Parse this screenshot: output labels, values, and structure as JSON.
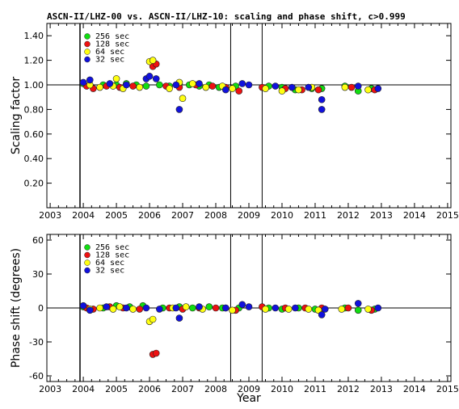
{
  "title": "ASCN-II/LHZ-00 vs. ASCN-II/LHZ-10: scaling and phase shift, c>0.999",
  "colors": {
    "256 sec": "#11dd11",
    "128 sec": "#ee1111",
    "64 sec": "#ffff11",
    "32 sec": "#1111dd"
  },
  "chart_data": [
    {
      "type": "scatter",
      "name": "scaling",
      "ylabel": "Scaling factor",
      "xlabel": "",
      "xlim": [
        2002.9,
        2015.1
      ],
      "ylim": [
        0.0,
        1.5
      ],
      "x_ticks": [
        "2003",
        "2004",
        "2005",
        "2006",
        "2007",
        "2008",
        "2009",
        "2010",
        "2011",
        "2012",
        "2013",
        "2014",
        "2015"
      ],
      "y_ticks": [
        "0.20",
        "0.40",
        "0.60",
        "0.80",
        "1.00",
        "1.20",
        "1.40"
      ],
      "reference_line": 1.0,
      "vlines": [
        2003.9,
        2008.45,
        2009.4
      ],
      "legend": [
        "256 sec",
        "128 sec",
        "64 sec",
        "32 sec"
      ],
      "series": [
        {
          "name": "256 sec",
          "points": [
            [
              2004.0,
              1.01
            ],
            [
              2004.6,
              1.0
            ],
            [
              2005.0,
              1.0
            ],
            [
              2005.3,
              1.01
            ],
            [
              2005.6,
              1.0
            ],
            [
              2005.9,
              0.99
            ],
            [
              2006.3,
              1.0
            ],
            [
              2006.6,
              0.99
            ],
            [
              2006.9,
              1.01
            ],
            [
              2007.2,
              1.0
            ],
            [
              2007.5,
              0.99
            ],
            [
              2007.8,
              1.0
            ],
            [
              2008.1,
              0.98
            ],
            [
              2008.6,
              0.99
            ],
            [
              2009.6,
              0.99
            ],
            [
              2010.0,
              0.98
            ],
            [
              2010.4,
              0.96
            ],
            [
              2010.9,
              0.97
            ],
            [
              2011.2,
              0.97
            ],
            [
              2011.9,
              0.99
            ],
            [
              2012.3,
              0.95
            ],
            [
              2012.7,
              0.97
            ]
          ]
        },
        {
          "name": "128 sec",
          "points": [
            [
              2004.1,
              0.99
            ],
            [
              2004.3,
              0.97
            ],
            [
              2004.7,
              0.99
            ],
            [
              2005.1,
              0.98
            ],
            [
              2005.5,
              0.99
            ],
            [
              2006.1,
              1.15
            ],
            [
              2006.2,
              1.17
            ],
            [
              2006.5,
              0.99
            ],
            [
              2006.9,
              0.98
            ],
            [
              2007.4,
              1.0
            ],
            [
              2007.9,
              0.99
            ],
            [
              2008.3,
              0.98
            ],
            [
              2008.7,
              0.95
            ],
            [
              2009.4,
              0.98
            ],
            [
              2010.1,
              0.97
            ],
            [
              2010.6,
              0.96
            ],
            [
              2011.1,
              0.96
            ],
            [
              2012.1,
              0.98
            ],
            [
              2012.8,
              0.96
            ]
          ]
        },
        {
          "name": "64 sec",
          "points": [
            [
              2004.2,
              1.0
            ],
            [
              2004.5,
              0.98
            ],
            [
              2004.9,
              0.99
            ],
            [
              2005.0,
              1.05
            ],
            [
              2005.2,
              0.97
            ],
            [
              2005.7,
              0.98
            ],
            [
              2006.0,
              1.19
            ],
            [
              2006.1,
              1.2
            ],
            [
              2006.6,
              0.97
            ],
            [
              2006.9,
              1.02
            ],
            [
              2007.0,
              0.89
            ],
            [
              2007.3,
              1.01
            ],
            [
              2007.7,
              0.98
            ],
            [
              2008.2,
              0.99
            ],
            [
              2008.5,
              0.97
            ],
            [
              2009.5,
              0.97
            ],
            [
              2010.0,
              0.95
            ],
            [
              2010.5,
              0.96
            ],
            [
              2010.9,
              0.98
            ],
            [
              2011.9,
              0.98
            ],
            [
              2012.6,
              0.96
            ]
          ]
        },
        {
          "name": "32 sec",
          "points": [
            [
              2004.0,
              1.02
            ],
            [
              2004.2,
              1.04
            ],
            [
              2004.8,
              1.01
            ],
            [
              2005.3,
              1.0
            ],
            [
              2005.9,
              1.05
            ],
            [
              2006.0,
              1.07
            ],
            [
              2006.2,
              1.05
            ],
            [
              2006.8,
              1.0
            ],
            [
              2006.9,
              0.8
            ],
            [
              2007.5,
              1.01
            ],
            [
              2008.3,
              0.96
            ],
            [
              2008.8,
              1.01
            ],
            [
              2009.0,
              1.0
            ],
            [
              2009.8,
              0.99
            ],
            [
              2010.3,
              0.98
            ],
            [
              2010.8,
              0.98
            ],
            [
              2011.2,
              0.88
            ],
            [
              2011.2,
              0.8
            ],
            [
              2012.3,
              0.99
            ],
            [
              2012.9,
              0.97
            ]
          ]
        }
      ]
    },
    {
      "type": "scatter",
      "name": "phase",
      "ylabel": "Phase shift (degrees)",
      "xlabel": "Year",
      "xlim": [
        2002.9,
        2015.1
      ],
      "ylim": [
        -65,
        65
      ],
      "x_ticks": [
        "2003",
        "2004",
        "2005",
        "2006",
        "2007",
        "2008",
        "2009",
        "2010",
        "2011",
        "2012",
        "2013",
        "2014",
        "2015"
      ],
      "y_ticks": [
        "-60",
        "-30",
        "0",
        "30",
        "60"
      ],
      "reference_line": 0,
      "vlines": [
        2003.9,
        2008.45,
        2009.4
      ],
      "legend": [
        "256 sec",
        "128 sec",
        "64 sec",
        "32 sec"
      ],
      "series": [
        {
          "name": "256 sec",
          "points": [
            [
              2004.0,
              1
            ],
            [
              2004.6,
              0
            ],
            [
              2005.0,
              2
            ],
            [
              2005.4,
              1
            ],
            [
              2005.8,
              2
            ],
            [
              2006.4,
              0
            ],
            [
              2006.9,
              1
            ],
            [
              2007.3,
              0
            ],
            [
              2007.8,
              1
            ],
            [
              2008.2,
              0
            ],
            [
              2008.7,
              0
            ],
            [
              2009.6,
              0
            ],
            [
              2010.0,
              -1
            ],
            [
              2010.5,
              0
            ],
            [
              2011.0,
              -1
            ],
            [
              2011.9,
              0
            ],
            [
              2012.3,
              -2
            ],
            [
              2012.8,
              -1
            ]
          ]
        },
        {
          "name": "128 sec",
          "points": [
            [
              2004.1,
              0
            ],
            [
              2004.3,
              -1
            ],
            [
              2004.8,
              1
            ],
            [
              2005.2,
              0
            ],
            [
              2005.7,
              -1
            ],
            [
              2006.1,
              -41
            ],
            [
              2006.2,
              -40
            ],
            [
              2006.6,
              0
            ],
            [
              2007.0,
              -1
            ],
            [
              2007.5,
              0
            ],
            [
              2008.0,
              0
            ],
            [
              2008.6,
              -2
            ],
            [
              2009.4,
              1
            ],
            [
              2010.1,
              0
            ],
            [
              2010.7,
              0
            ],
            [
              2011.2,
              0
            ],
            [
              2012.0,
              0
            ],
            [
              2012.7,
              -2
            ]
          ]
        },
        {
          "name": "64 sec",
          "points": [
            [
              2004.2,
              -1
            ],
            [
              2004.5,
              0
            ],
            [
              2004.9,
              -1
            ],
            [
              2005.1,
              1
            ],
            [
              2005.5,
              -1
            ],
            [
              2006.0,
              -12
            ],
            [
              2006.1,
              -10
            ],
            [
              2006.7,
              0
            ],
            [
              2007.1,
              1
            ],
            [
              2007.6,
              -1
            ],
            [
              2008.3,
              0
            ],
            [
              2008.5,
              -2
            ],
            [
              2009.5,
              -1
            ],
            [
              2010.2,
              -1
            ],
            [
              2010.8,
              -1
            ],
            [
              2011.1,
              -2
            ],
            [
              2011.8,
              -1
            ],
            [
              2012.6,
              -1
            ]
          ]
        },
        {
          "name": "32 sec",
          "points": [
            [
              2004.0,
              2
            ],
            [
              2004.2,
              -2
            ],
            [
              2004.7,
              1
            ],
            [
              2005.3,
              0
            ],
            [
              2005.9,
              0
            ],
            [
              2006.3,
              -1
            ],
            [
              2006.8,
              0
            ],
            [
              2006.9,
              -9
            ],
            [
              2007.5,
              1
            ],
            [
              2008.3,
              0
            ],
            [
              2008.8,
              3
            ],
            [
              2009.0,
              1
            ],
            [
              2009.8,
              0
            ],
            [
              2010.4,
              0
            ],
            [
              2011.2,
              -6
            ],
            [
              2011.3,
              -1
            ],
            [
              2012.3,
              4
            ],
            [
              2012.9,
              0
            ]
          ]
        }
      ]
    }
  ]
}
